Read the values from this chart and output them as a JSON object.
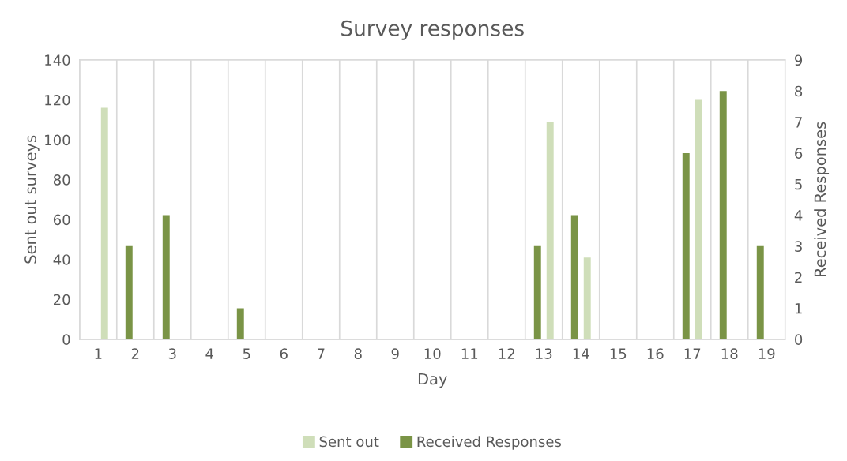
{
  "chart_data": {
    "type": "bar",
    "title": "Survey responses",
    "xlabel": "Day",
    "ylabel": "Sent out surveys",
    "y2label": "Received Responses",
    "categories": [
      "1",
      "2",
      "3",
      "4",
      "5",
      "6",
      "7",
      "8",
      "9",
      "10",
      "11",
      "12",
      "13",
      "14",
      "15",
      "16",
      "17",
      "18",
      "19"
    ],
    "series": [
      {
        "name": "Sent out",
        "color": "#cfdeb9",
        "values": [
          116,
          null,
          null,
          null,
          null,
          null,
          null,
          null,
          null,
          null,
          null,
          null,
          109,
          41,
          null,
          null,
          120,
          null,
          null
        ]
      },
      {
        "name": "Received Responses",
        "color": "#7a9446",
        "axis": "y2",
        "values": [
          null,
          3,
          4,
          null,
          1,
          null,
          null,
          null,
          null,
          null,
          null,
          null,
          3,
          4,
          null,
          null,
          6,
          8,
          3
        ]
      }
    ],
    "ylim": [
      0,
      140
    ],
    "yticks": [
      0,
      20,
      40,
      60,
      80,
      100,
      120,
      140
    ],
    "y2lim": [
      0,
      9
    ],
    "y2ticks": [
      0,
      1,
      2,
      3,
      4,
      5,
      6,
      7,
      8,
      9
    ],
    "grid": "x",
    "legend": "bottom"
  }
}
